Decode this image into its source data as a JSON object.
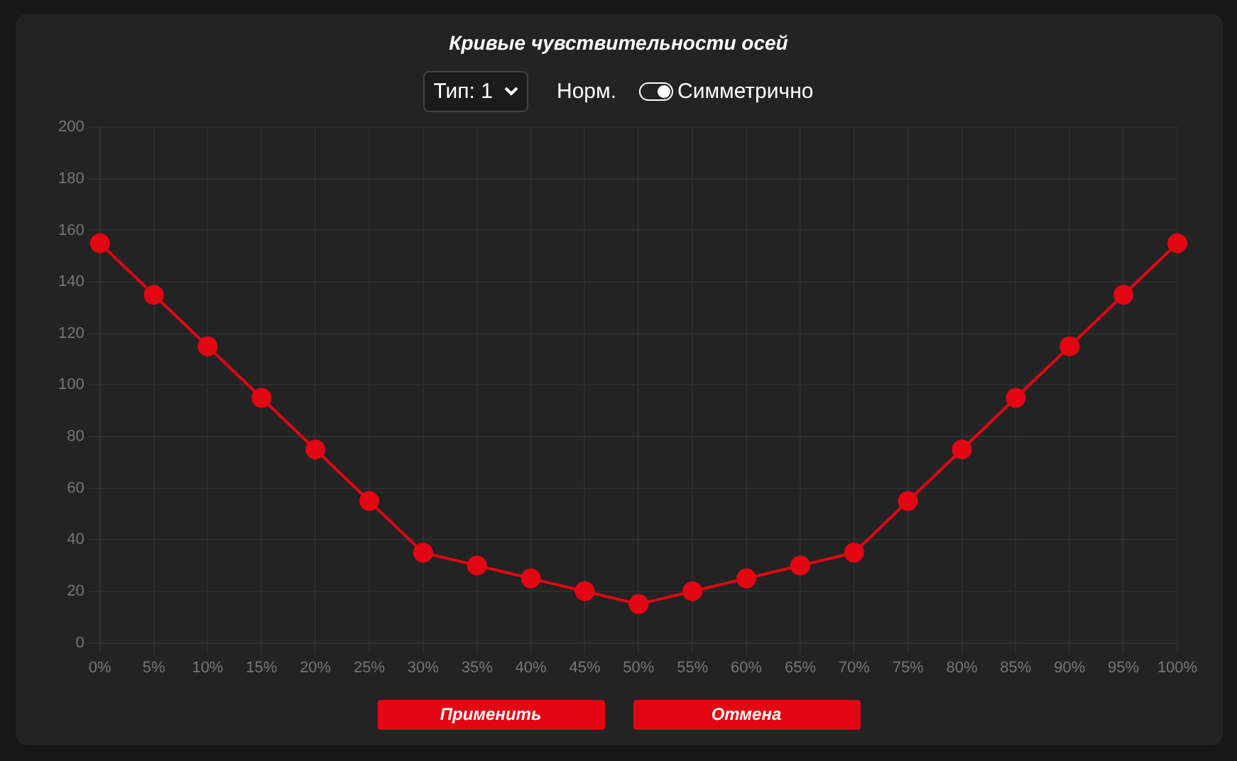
{
  "chart_data": {
    "type": "line",
    "title": "Кривые чувствительности осей",
    "annotations": [
      "Тип: 1",
      "Норм.",
      "Симметрично",
      "Применить",
      "Отмена"
    ],
    "categories": [
      "0%",
      "5%",
      "10%",
      "15%",
      "20%",
      "25%",
      "30%",
      "35%",
      "40%",
      "45%",
      "50%",
      "55%",
      "60%",
      "65%",
      "70%",
      "75%",
      "80%",
      "85%",
      "90%",
      "95%",
      "100%"
    ],
    "series": [
      {
        "color": "#e30613",
        "values": [
          155,
          135,
          115,
          95,
          75,
          55,
          35,
          30,
          25,
          20,
          15,
          20,
          25,
          30,
          35,
          55,
          75,
          95,
          115,
          135,
          155
        ]
      }
    ],
    "ylim": [
      0,
      200
    ],
    "yticks": [
      0,
      20,
      40,
      60,
      80,
      100,
      120,
      140,
      160,
      180,
      200
    ],
    "grid": true,
    "legend": false,
    "marker": "circle",
    "line_style": "solid"
  }
}
